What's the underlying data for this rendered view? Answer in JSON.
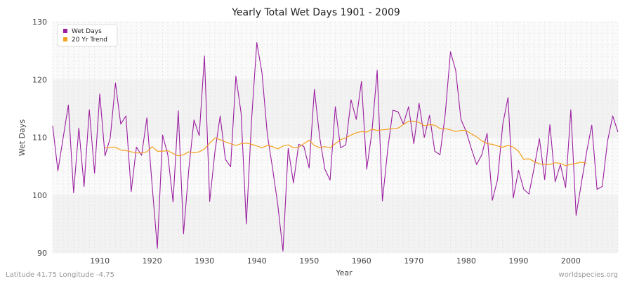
{
  "chart_data": {
    "type": "line",
    "title": "Yearly Total Wet Days 1901 - 2009",
    "xlabel": "Year",
    "ylabel": "Wet Days",
    "xlim": [
      1901,
      2009
    ],
    "ylim": [
      90,
      130
    ],
    "x_ticks": [
      1910,
      1920,
      1930,
      1940,
      1950,
      1960,
      1970,
      1980,
      1990,
      2000
    ],
    "y_ticks": [
      90,
      100,
      110,
      120,
      130
    ],
    "grid": true,
    "legend_position": "top-left",
    "series": [
      {
        "name": "Wet Days",
        "color": "#9b1fa0",
        "x_start": 1901,
        "values": [
          112.0,
          104.2,
          109.9,
          115.6,
          100.4,
          111.6,
          101.5,
          114.8,
          103.8,
          117.5,
          106.8,
          109.9,
          119.4,
          112.3,
          113.7,
          100.6,
          108.3,
          106.9,
          113.4,
          101.7,
          90.8,
          110.4,
          107.0,
          98.8,
          114.6,
          93.3,
          104.4,
          113.0,
          110.3,
          124.1,
          98.9,
          107.5,
          113.7,
          106.2,
          104.9,
          120.6,
          114.2,
          95.0,
          113.0,
          126.4,
          121.1,
          110.6,
          104.7,
          98.4,
          90.3,
          108.1,
          102.1,
          108.8,
          108.4,
          104.7,
          118.3,
          110.1,
          104.5,
          102.6,
          115.3,
          108.2,
          108.7,
          116.5,
          113.1,
          119.7,
          104.5,
          111.0,
          121.6,
          99.0,
          107.8,
          114.7,
          114.4,
          112.3,
          115.3,
          108.9,
          115.9,
          110.0,
          113.8,
          107.6,
          107.0,
          114.0,
          124.8,
          121.6,
          113.1,
          111.0,
          108.0,
          105.3,
          107.0,
          110.7,
          99.1,
          102.7,
          112.3,
          116.9,
          99.5,
          104.3,
          101.0,
          100.2,
          104.8,
          109.8,
          102.7,
          112.2,
          102.3,
          105.3,
          101.3,
          114.8,
          96.5,
          102.0,
          107.4,
          112.1,
          101.0,
          101.5,
          109.3,
          113.7,
          110.9
        ]
      },
      {
        "name": "20 Yr Trend",
        "color": "#f4a11d",
        "x_start": 1911,
        "values": [
          108.2,
          108.3,
          108.3,
          107.8,
          107.7,
          107.5,
          107.3,
          107.3,
          107.5,
          108.4,
          107.6,
          107.6,
          107.7,
          107.2,
          106.8,
          107.0,
          107.5,
          107.3,
          107.5,
          108.0,
          109.0,
          109.9,
          109.6,
          109.2,
          108.9,
          108.6,
          108.9,
          109.0,
          108.8,
          108.5,
          108.2,
          108.6,
          108.4,
          108.0,
          108.5,
          108.7,
          108.2,
          108.3,
          108.9,
          109.5,
          108.6,
          108.2,
          108.4,
          108.2,
          108.9,
          109.6,
          109.9,
          110.4,
          110.8,
          111.0,
          110.9,
          111.4,
          111.2,
          111.3,
          111.4,
          111.5,
          111.6,
          112.2,
          112.8,
          112.8,
          112.6,
          112.0,
          112.2,
          112.1,
          111.5,
          111.5,
          111.3,
          111.0,
          111.2,
          111.2,
          110.6,
          110.1,
          109.4,
          108.9,
          108.8,
          108.5,
          108.3,
          108.6,
          108.3,
          107.6,
          106.2,
          106.3,
          105.8,
          105.4,
          105.3,
          105.3,
          105.6,
          105.5,
          105.1,
          105.3,
          105.5,
          105.7,
          105.5
        ]
      }
    ]
  },
  "footer": {
    "left": "Latitude 41.75 Longitude -4.75",
    "right": "worldspecies.org"
  }
}
